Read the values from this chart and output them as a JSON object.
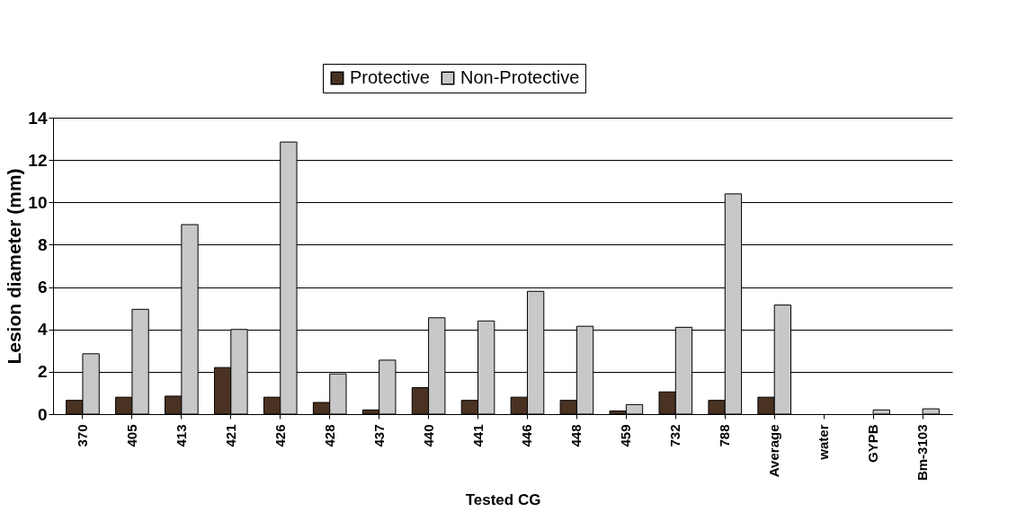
{
  "chart_data": {
    "type": "bar",
    "xlabel": "Tested CG",
    "ylabel": "Lesion diameter (mm)",
    "categories": [
      "370",
      "405",
      "413",
      "421",
      "426",
      "428",
      "437",
      "440",
      "441",
      "446",
      "448",
      "459",
      "732",
      "788",
      "Average",
      "water",
      "GYPB",
      "Bm-3103"
    ],
    "series": [
      {
        "name": "Protective",
        "color": "#4a3222",
        "values": [
          0.65,
          0.8,
          0.85,
          2.2,
          0.8,
          0.55,
          0.2,
          1.25,
          0.65,
          0.8,
          0.65,
          0.15,
          1.05,
          0.65,
          0.8,
          0,
          0,
          0
        ]
      },
      {
        "name": "Non-Protective",
        "color": "#c8c8c8",
        "values": [
          2.85,
          4.95,
          8.95,
          4.0,
          12.85,
          1.9,
          2.55,
          4.55,
          4.4,
          5.8,
          4.15,
          0.45,
          4.1,
          10.4,
          5.15,
          0,
          0.2,
          0.25
        ]
      }
    ],
    "ylim": [
      0,
      14
    ],
    "yticks": [
      0,
      2,
      4,
      6,
      8,
      10,
      12,
      14
    ],
    "grid": "y",
    "legend": "top"
  }
}
